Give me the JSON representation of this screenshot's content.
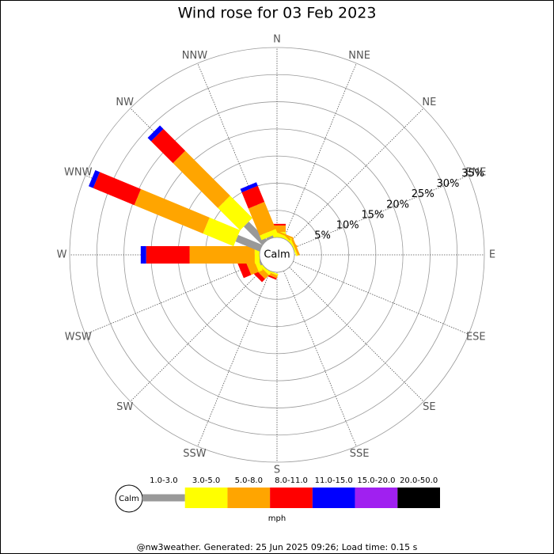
{
  "chart_data": {
    "type": "wind_rose",
    "title": "Wind rose for 03 Feb 2023",
    "directions": [
      "N",
      "NNE",
      "NE",
      "ENE",
      "E",
      "ESE",
      "SE",
      "SSE",
      "S",
      "SSW",
      "SW",
      "WSW",
      "W",
      "WNW",
      "NW",
      "NNW"
    ],
    "calm_label": "Calm",
    "unit_label": "mph",
    "rlim": [
      0,
      35
    ],
    "rticks": [
      {
        "value": 5,
        "label": "5%"
      },
      {
        "value": 10,
        "label": "10%"
      },
      {
        "value": 15,
        "label": "15%"
      },
      {
        "value": 20,
        "label": "20%"
      },
      {
        "value": 25,
        "label": "25%"
      },
      {
        "value": 30,
        "label": "30%"
      },
      {
        "value": 35,
        "label": "35%"
      }
    ],
    "series": [
      {
        "name": "1.0-3.0",
        "color": "#999999",
        "values": [
          0,
          0,
          0,
          0,
          0,
          0,
          0,
          0,
          0,
          0,
          0,
          0.3,
          0,
          4.8,
          4.8,
          0.4
        ]
      },
      {
        "name": "3.0-5.0",
        "color": "#ffff00",
        "values": [
          1.0,
          0.6,
          0.3,
          0.3,
          0,
          0,
          0,
          0,
          0,
          0.3,
          0.5,
          0.8,
          0.9,
          6.1,
          5.8,
          0.9
        ]
      },
      {
        "name": "5.0-8.0",
        "color": "#ffa500",
        "values": [
          1.2,
          0.3,
          0.3,
          0.4,
          0,
          0,
          0,
          0,
          0,
          0.5,
          1.0,
          1.5,
          12,
          13.7,
          11.7,
          5.4
        ]
      },
      {
        "name": "8.0-11.0",
        "color": "#ff0000",
        "values": [
          0.3,
          0,
          0,
          0,
          0,
          0,
          0,
          0,
          0,
          0.3,
          0.8,
          1.5,
          8,
          8.2,
          5.7,
          3.2
        ]
      },
      {
        "name": "11.0-15.0",
        "color": "#0000ff",
        "values": [
          0,
          0,
          0,
          0,
          0,
          0,
          0,
          0,
          0,
          0,
          0,
          0,
          1.0,
          0.9,
          0.9,
          0.7
        ]
      },
      {
        "name": "15.0-20.0",
        "color": "#a020f0",
        "values": [
          0,
          0,
          0,
          0,
          0,
          0,
          0,
          0,
          0,
          0,
          0,
          0,
          0,
          0,
          0,
          0
        ]
      },
      {
        "name": "20.0-50.0",
        "color": "#000000",
        "values": [
          0,
          0,
          0,
          0,
          0,
          0,
          0,
          0,
          0,
          0,
          0,
          0,
          0,
          0,
          0,
          0
        ]
      }
    ]
  },
  "footer": "@nw3weather. Generated: 25 Jun 2025 09:26; Load time: 0.15 s"
}
